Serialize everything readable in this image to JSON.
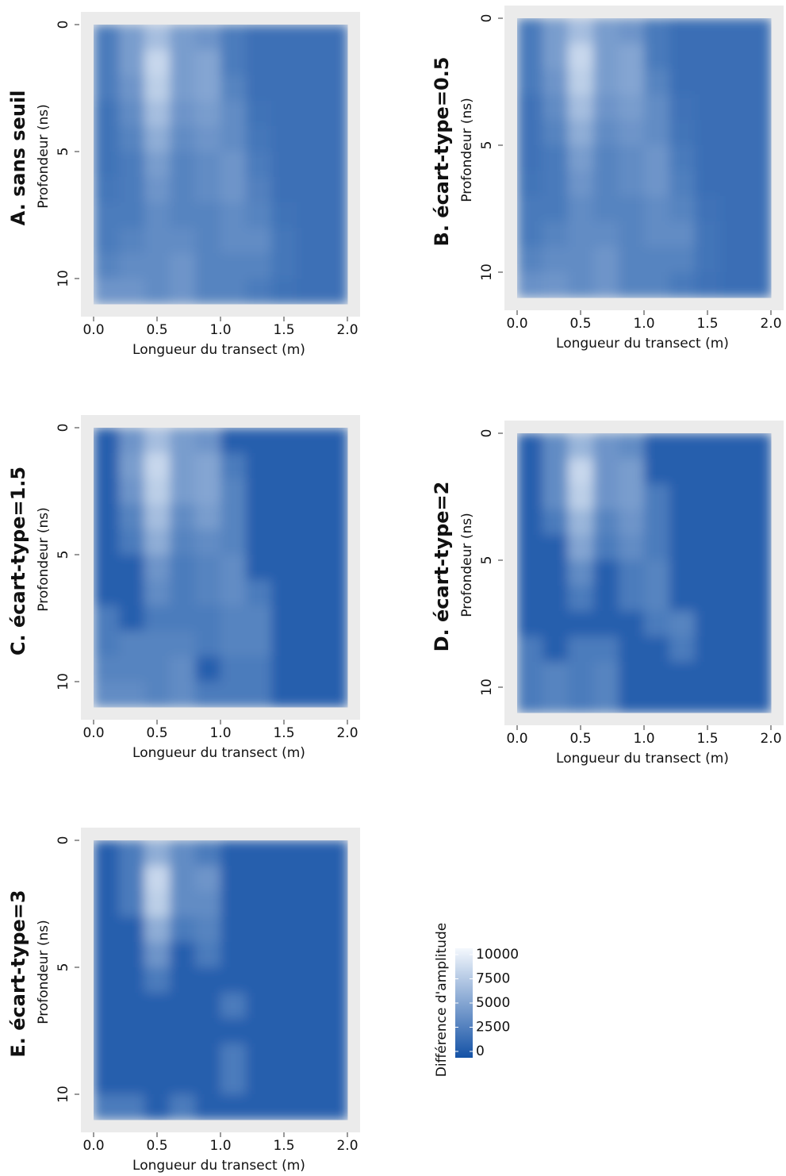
{
  "chart_data": [
    {
      "type": "heatmap",
      "title": "A. sans seuil",
      "xlabel": "Longueur du transect (m)",
      "ylabel": "Profondeur (ns)",
      "x": [
        0.1,
        0.3,
        0.5,
        0.7,
        0.9,
        1.1,
        1.3,
        1.5,
        1.7,
        1.9
      ],
      "y": [
        0.5,
        1.5,
        2.5,
        3.5,
        4.5,
        5.5,
        6.5,
        7.5,
        8.5,
        9.5,
        10.5
      ],
      "xlim": [
        -0.1,
        2.1
      ],
      "ylim": [
        11.5,
        -0.5
      ],
      "xticks": [
        {
          "value": 0,
          "label": "0.0"
        },
        0.5,
        {
          "value": 1,
          "label": "1.0"
        },
        1.5,
        {
          "value": 2,
          "label": "2.0"
        }
      ],
      "yticks": [
        0,
        5,
        10
      ],
      "z": [
        [
          2500,
          4500,
          6500,
          4500,
          4000,
          2500,
          1800,
          1800,
          1800,
          1800
        ],
        [
          2500,
          4500,
          8000,
          4500,
          5000,
          2500,
          1800,
          1800,
          1800,
          1800
        ],
        [
          2500,
          4000,
          7500,
          4500,
          5000,
          3000,
          1800,
          1800,
          1800,
          1800
        ],
        [
          2000,
          3500,
          6500,
          4000,
          4500,
          3500,
          2000,
          1800,
          1800,
          1800
        ],
        [
          2000,
          3000,
          5500,
          3500,
          4000,
          3500,
          2200,
          1800,
          1800,
          1800
        ],
        [
          2000,
          2500,
          4500,
          3000,
          3500,
          4000,
          2500,
          1800,
          1800,
          1800
        ],
        [
          2200,
          2500,
          4000,
          3000,
          3500,
          4000,
          2800,
          1800,
          1800,
          1800
        ],
        [
          2500,
          2500,
          3500,
          3000,
          3000,
          3500,
          3000,
          2000,
          1800,
          1800
        ],
        [
          2500,
          3000,
          3500,
          3500,
          3000,
          3500,
          3500,
          2200,
          1800,
          1800
        ],
        [
          3000,
          3500,
          3500,
          4000,
          3000,
          3000,
          3000,
          2200,
          1800,
          1800
        ],
        [
          4000,
          4000,
          3500,
          4000,
          3000,
          3000,
          2500,
          2000,
          1800,
          1800
        ]
      ]
    },
    {
      "type": "heatmap",
      "title": "B. écart-type=0.5",
      "xlabel": "Longueur du transect (m)",
      "ylabel": "Profondeur (ns)",
      "x": [
        0.1,
        0.3,
        0.5,
        0.7,
        0.9,
        1.1,
        1.3,
        1.5,
        1.7,
        1.9
      ],
      "y": [
        0.5,
        1.5,
        2.5,
        3.5,
        4.5,
        5.5,
        6.5,
        7.5,
        8.5,
        9.5,
        10.5
      ],
      "xlim": [
        -0.1,
        2.1
      ],
      "ylim": [
        11.5,
        -0.5
      ],
      "xticks": [
        {
          "value": 0,
          "label": "0.0"
        },
        0.5,
        {
          "value": 1,
          "label": "1.0"
        },
        1.5,
        {
          "value": 2,
          "label": "2.0"
        }
      ],
      "yticks": [
        0,
        5,
        10
      ],
      "z": [
        [
          2400,
          4500,
          6500,
          4500,
          4000,
          2400,
          1700,
          1700,
          1700,
          1700
        ],
        [
          2400,
          4500,
          8000,
          4500,
          5000,
          2400,
          1700,
          1700,
          1700,
          1700
        ],
        [
          2400,
          4000,
          7500,
          4500,
          5000,
          3000,
          1700,
          1700,
          1700,
          1700
        ],
        [
          1900,
          3500,
          6500,
          4000,
          4500,
          3500,
          1900,
          1700,
          1700,
          1700
        ],
        [
          1900,
          3000,
          5500,
          3500,
          4000,
          3500,
          2100,
          1700,
          1700,
          1700
        ],
        [
          1900,
          2400,
          4500,
          3000,
          3500,
          4000,
          2400,
          1700,
          1700,
          1700
        ],
        [
          2100,
          2400,
          4000,
          3000,
          3500,
          4000,
          2700,
          1700,
          1700,
          1700
        ],
        [
          2400,
          2400,
          3500,
          3000,
          3000,
          3500,
          3000,
          1900,
          1700,
          1700
        ],
        [
          2400,
          3000,
          3500,
          3500,
          3000,
          3500,
          3500,
          2100,
          1700,
          1700
        ],
        [
          3000,
          3500,
          3500,
          4000,
          3000,
          3000,
          3000,
          2100,
          1700,
          1700
        ],
        [
          3800,
          4000,
          3500,
          4000,
          3000,
          3000,
          2400,
          1900,
          1700,
          1700
        ]
      ]
    },
    {
      "type": "heatmap",
      "title": "C. écart-type=1.5",
      "xlabel": "Longueur du transect (m)",
      "ylabel": "Profondeur (ns)",
      "x": [
        0.1,
        0.3,
        0.5,
        0.7,
        0.9,
        1.1,
        1.3,
        1.5,
        1.7,
        1.9
      ],
      "y": [
        0.5,
        1.5,
        2.5,
        3.5,
        4.5,
        5.5,
        6.5,
        7.5,
        8.5,
        9.5,
        10.5
      ],
      "xlim": [
        -0.1,
        2.1
      ],
      "ylim": [
        11.5,
        -0.5
      ],
      "xticks": [
        {
          "value": 0,
          "label": "0.0"
        },
        0.5,
        {
          "value": 1,
          "label": "1.0"
        },
        1.5,
        {
          "value": 2,
          "label": "2.0"
        }
      ],
      "yticks": [
        0,
        5,
        10
      ],
      "z": [
        [
          800,
          4000,
          6500,
          4500,
          4000,
          800,
          800,
          800,
          800,
          800
        ],
        [
          800,
          4500,
          8000,
          4500,
          5000,
          2500,
          800,
          800,
          800,
          800
        ],
        [
          800,
          4000,
          7500,
          4500,
          5000,
          3000,
          800,
          800,
          800,
          800
        ],
        [
          800,
          3000,
          6500,
          3500,
          4500,
          3000,
          800,
          800,
          800,
          800
        ],
        [
          800,
          2500,
          5500,
          3000,
          3500,
          3000,
          800,
          800,
          800,
          800
        ],
        [
          800,
          800,
          4000,
          2500,
          3000,
          3500,
          800,
          800,
          800,
          800
        ],
        [
          800,
          800,
          3500,
          2500,
          3000,
          3500,
          2500,
          800,
          800,
          800
        ],
        [
          2500,
          800,
          2500,
          2500,
          2500,
          3000,
          3000,
          800,
          800,
          800
        ],
        [
          2500,
          3000,
          3000,
          3000,
          2500,
          3000,
          3000,
          800,
          800,
          800
        ],
        [
          3000,
          3000,
          3000,
          3500,
          800,
          2500,
          2500,
          800,
          800,
          800
        ],
        [
          3500,
          3500,
          3000,
          3500,
          2500,
          2500,
          2500,
          800,
          800,
          800
        ]
      ]
    },
    {
      "type": "heatmap",
      "title": "D. écart-type=2",
      "xlabel": "Longueur du transect (m)",
      "ylabel": "Profondeur (ns)",
      "x": [
        0.1,
        0.3,
        0.5,
        0.7,
        0.9,
        1.1,
        1.3,
        1.5,
        1.7,
        1.9
      ],
      "y": [
        0.5,
        1.5,
        2.5,
        3.5,
        4.5,
        5.5,
        6.5,
        7.5,
        8.5,
        9.5,
        10.5
      ],
      "xlim": [
        -0.1,
        2.1
      ],
      "ylim": [
        11.5,
        -0.5
      ],
      "xticks": [
        {
          "value": 0,
          "label": "0.0"
        },
        0.5,
        {
          "value": 1,
          "label": "1.0"
        },
        1.5,
        {
          "value": 2,
          "label": "2.0"
        }
      ],
      "yticks": [
        0,
        5,
        10
      ],
      "z": [
        [
          800,
          3500,
          6000,
          4000,
          3500,
          800,
          800,
          800,
          800,
          800
        ],
        [
          800,
          3500,
          8000,
          4000,
          4500,
          800,
          800,
          800,
          800,
          800
        ],
        [
          800,
          3500,
          7500,
          4000,
          4500,
          2500,
          800,
          800,
          800,
          800
        ],
        [
          800,
          2500,
          6000,
          3000,
          4000,
          2500,
          800,
          800,
          800,
          800
        ],
        [
          800,
          800,
          5000,
          2500,
          3500,
          2500,
          800,
          800,
          800,
          800
        ],
        [
          800,
          800,
          3500,
          800,
          2500,
          3000,
          800,
          800,
          800,
          800
        ],
        [
          800,
          800,
          2500,
          800,
          2500,
          3000,
          800,
          800,
          800,
          800
        ],
        [
          800,
          800,
          800,
          800,
          800,
          2500,
          3000,
          800,
          800,
          800
        ],
        [
          2500,
          800,
          2500,
          2500,
          800,
          800,
          2500,
          800,
          800,
          800
        ],
        [
          2500,
          3000,
          2500,
          3000,
          800,
          800,
          800,
          800,
          800,
          800
        ],
        [
          2500,
          3000,
          2500,
          3000,
          800,
          800,
          800,
          800,
          800,
          800
        ]
      ]
    },
    {
      "type": "heatmap",
      "title": "E. écart-type=3",
      "xlabel": "Longueur du transect (m)",
      "ylabel": "Profondeur (ns)",
      "x": [
        0.1,
        0.3,
        0.5,
        0.7,
        0.9,
        1.1,
        1.3,
        1.5,
        1.7,
        1.9
      ],
      "y": [
        0.5,
        1.5,
        2.5,
        3.5,
        4.5,
        5.5,
        6.5,
        7.5,
        8.5,
        9.5,
        10.5
      ],
      "xlim": [
        -0.1,
        2.1
      ],
      "ylim": [
        11.5,
        -0.5
      ],
      "xticks": [
        {
          "value": 0,
          "label": "0.0"
        },
        0.5,
        {
          "value": 1,
          "label": "1.0"
        },
        1.5,
        {
          "value": 2,
          "label": "2.0"
        }
      ],
      "yticks": [
        0,
        5,
        10
      ],
      "z": [
        [
          800,
          2500,
          5500,
          3500,
          2500,
          800,
          800,
          800,
          800,
          800
        ],
        [
          800,
          2500,
          8000,
          3500,
          4000,
          800,
          800,
          800,
          800,
          800
        ],
        [
          800,
          2500,
          7500,
          3500,
          3500,
          800,
          800,
          800,
          800,
          800
        ],
        [
          800,
          800,
          5500,
          2500,
          3000,
          800,
          800,
          800,
          800,
          800
        ],
        [
          800,
          800,
          4000,
          800,
          2500,
          800,
          800,
          800,
          800,
          800
        ],
        [
          800,
          800,
          2500,
          800,
          800,
          800,
          800,
          800,
          800,
          800
        ],
        [
          800,
          800,
          800,
          800,
          800,
          2500,
          800,
          800,
          800,
          800
        ],
        [
          800,
          800,
          800,
          800,
          800,
          800,
          800,
          800,
          800,
          800
        ],
        [
          800,
          800,
          800,
          800,
          800,
          2500,
          800,
          800,
          800,
          800
        ],
        [
          800,
          800,
          800,
          800,
          800,
          2500,
          800,
          800,
          800,
          800
        ],
        [
          2500,
          2500,
          800,
          2500,
          800,
          800,
          800,
          800,
          800,
          800
        ]
      ]
    }
  ],
  "colorbar": {
    "title": "Différence d'amplitude",
    "lim": [
      0,
      10000
    ],
    "ticks": [
      10000,
      7500,
      5000,
      2500,
      0
    ],
    "colors": [
      "#1452a6",
      "#f4f8fd"
    ]
  }
}
